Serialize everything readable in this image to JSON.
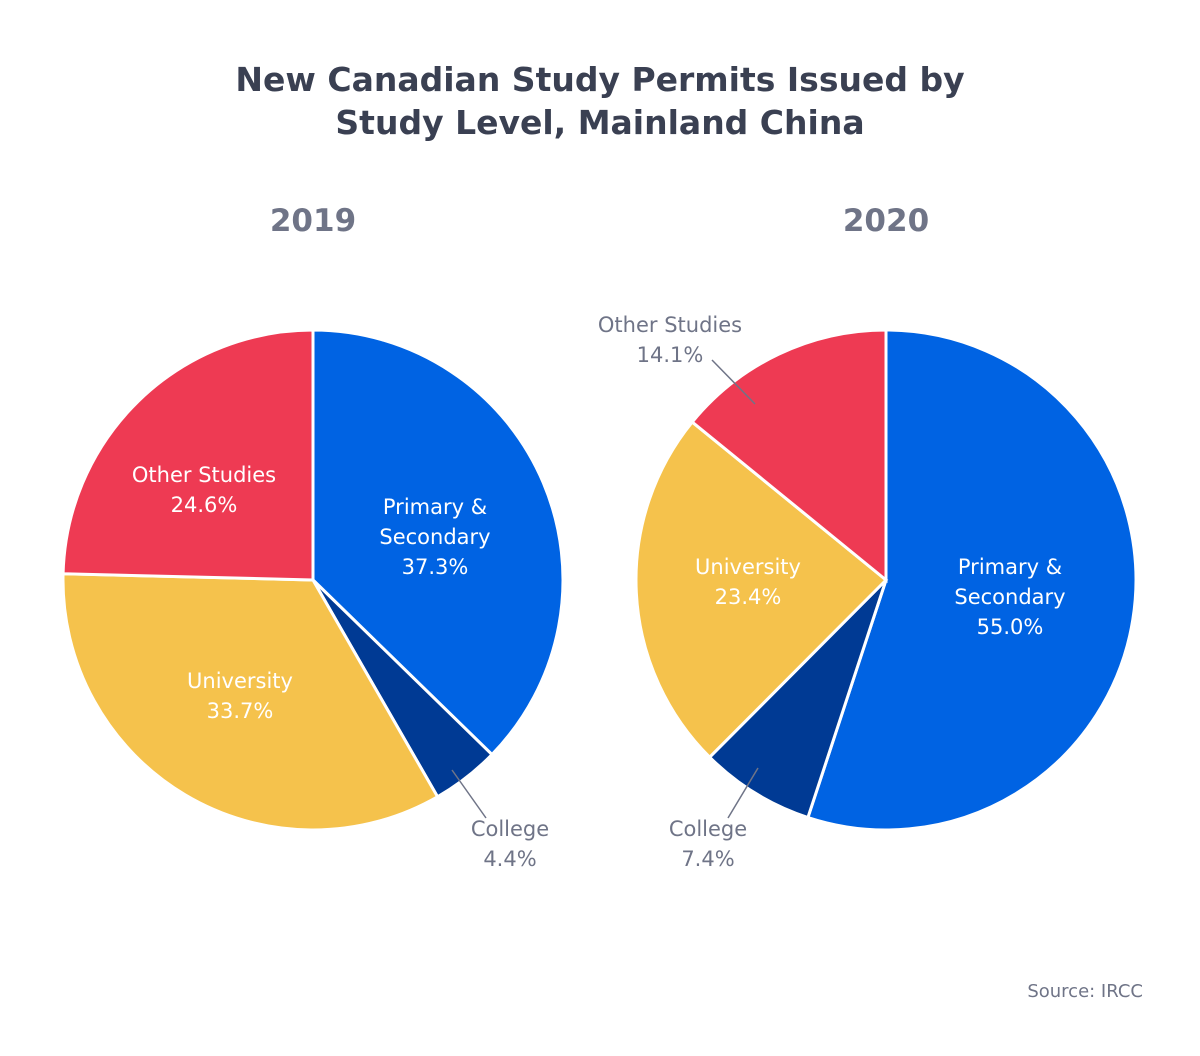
{
  "title": [
    "New Canadian Study Permits Issued by",
    "Study Level, Mainland China"
  ],
  "source": "Source: IRCC",
  "colors": {
    "Primary & Secondary": "#0063e3",
    "College": "#003a94",
    "University": "#f5c24c",
    "Other Studies": "#ee3a53"
  },
  "chart_data": [
    {
      "type": "pie",
      "title": "2019",
      "slices": [
        {
          "label": [
            "Primary &",
            "Secondary"
          ],
          "name": "Primary & Secondary",
          "value": 37.3,
          "value_label": "37.3%"
        },
        {
          "label": [
            "College"
          ],
          "name": "College",
          "value": 4.4,
          "value_label": "4.4%"
        },
        {
          "label": [
            "University"
          ],
          "name": "University",
          "value": 33.7,
          "value_label": "33.7%"
        },
        {
          "label": [
            "Other Studies"
          ],
          "name": "Other Studies",
          "value": 24.6,
          "value_label": "24.6%"
        }
      ]
    },
    {
      "type": "pie",
      "title": "2020",
      "slices": [
        {
          "label": [
            "Primary &",
            "Secondary"
          ],
          "name": "Primary & Secondary",
          "value": 55.0,
          "value_label": "55.0%"
        },
        {
          "label": [
            "College"
          ],
          "name": "College",
          "value": 7.4,
          "value_label": "7.4%"
        },
        {
          "label": [
            "University"
          ],
          "name": "University",
          "value": 23.4,
          "value_label": "23.4%"
        },
        {
          "label": [
            "Other Studies"
          ],
          "name": "Other Studies",
          "value": 14.1,
          "value_label": "14.1%"
        }
      ]
    }
  ]
}
